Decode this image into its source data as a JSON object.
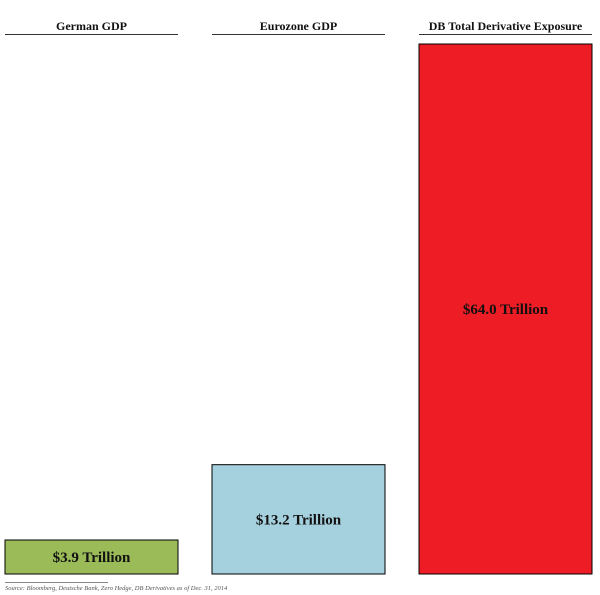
{
  "chart_data": {
    "type": "bar",
    "categories": [
      "German GDP",
      "Eurozone GDP",
      "DB Total Derivative Exposure"
    ],
    "values": [
      3.9,
      13.2,
      64.0
    ],
    "value_labels": [
      "$3.9 Trillion",
      "$13.2 Trillion",
      "$64.0 Trillion"
    ],
    "colors": [
      "#9BBB59",
      "#A5D0DE",
      "#EE1C24"
    ],
    "ylim": [
      0,
      64.0
    ]
  },
  "source_note": "Source: Bloomberg, Deutsche Bank, Zero Hedge, DB Derivatives as of Dec. 31, 2014"
}
